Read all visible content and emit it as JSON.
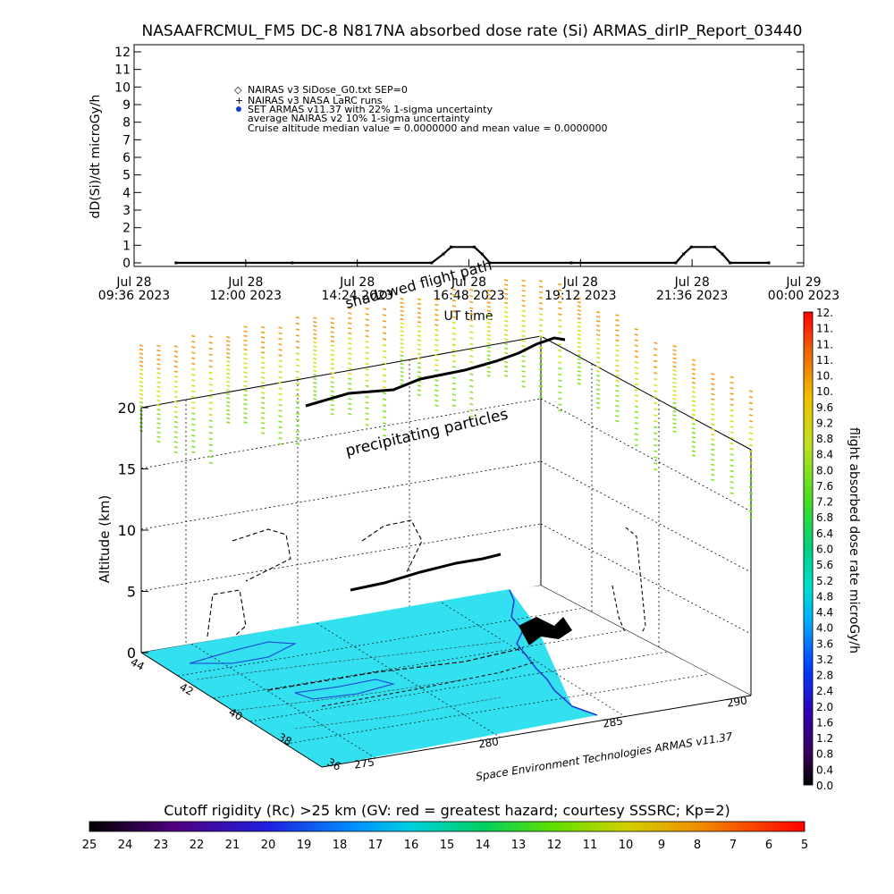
{
  "title": "NASAAFRCMUL_FM5 DC-8   N817NA absorbed dose rate (Si) ARMAS_dirIP_Report_03440",
  "top_chart": {
    "ylabel": "dD(Si)/dt microGy/h",
    "xlabel": "UT time",
    "y_ticks": [
      "0",
      "1",
      "2",
      "3",
      "4",
      "5",
      "6",
      "7",
      "8",
      "9",
      "10",
      "11",
      "12"
    ],
    "x_ticks": [
      {
        "date": "Jul 28",
        "time": "09:36 2023"
      },
      {
        "date": "Jul 28",
        "time": "12:00 2023"
      },
      {
        "date": "Jul 28",
        "time": "14:24 2023"
      },
      {
        "date": "Jul 28",
        "time": "16:48 2023"
      },
      {
        "date": "Jul 28",
        "time": "19:12 2023"
      },
      {
        "date": "Jul 28",
        "time": "21:36 2023"
      },
      {
        "date": "Jul 29",
        "time": "00:00 2023"
      }
    ],
    "legend": [
      "NAIRAS v3 SiDose_G0.txt SEP=0",
      "NAIRAS v3 NASA LaRC runs",
      "SET ARMAS v11.37 with 22% 1-sigma uncertainty",
      "average NAIRAS v2 10% 1-sigma uncertainty",
      "Cruise altitude median value = 0.0000000 and mean value = 0.0000000"
    ]
  },
  "chart_data": {
    "type": "line",
    "title": "NASAAFRCMUL_FM5 DC-8   N817NA absorbed dose rate (Si) ARMAS_dirIP_Report_03440",
    "xlabel": "UT time",
    "ylabel": "dD(Si)/dt microGy/h",
    "xlim": [
      "2023-07-28 09:36",
      "2023-07-29 00:00"
    ],
    "ylim": [
      0,
      12
    ],
    "series": [
      {
        "name": "SET ARMAS v11.37 with 22% 1-sigma uncertainty",
        "x": [
          "2023-07-28 10:30",
          "2023-07-28 13:00",
          "2023-07-28 16:00",
          "2023-07-28 16:15",
          "2023-07-28 16:25",
          "2023-07-28 16:55",
          "2023-07-28 17:05",
          "2023-07-28 17:15",
          "2023-07-28 19:00",
          "2023-07-28 21:15",
          "2023-07-28 21:25",
          "2023-07-28 21:35",
          "2023-07-28 22:05",
          "2023-07-28 22:15",
          "2023-07-28 22:25",
          "2023-07-28 23:15"
        ],
        "values": [
          0,
          0,
          0,
          0.5,
          0.9,
          0.9,
          0.5,
          0,
          0,
          0,
          0.5,
          0.9,
          0.9,
          0.5,
          0,
          0
        ]
      }
    ],
    "annotations": [
      "shadowed flight path",
      "precipitating particles"
    ],
    "globe_axes": {
      "altitude_label": "Altitude (km)",
      "altitude_ticks": [
        "0",
        "5",
        "10",
        "15",
        "20"
      ],
      "latitude_ticks": [
        "44",
        "42",
        "40",
        "38",
        "36"
      ],
      "longitude_ticks": [
        "275",
        "280",
        "285",
        "290"
      ]
    },
    "dose_colorbar": {
      "label": "flight absorbed dose rate microGy/h",
      "ticks": [
        "0.0",
        "0.4",
        "0.8",
        "1.2",
        "1.6",
        "2.0",
        "2.4",
        "2.8",
        "3.2",
        "3.6",
        "4.0",
        "4.4",
        "4.8",
        "5.2",
        "5.6",
        "6.0",
        "6.4",
        "6.8",
        "7.2",
        "7.6",
        "8.0",
        "8.4",
        "8.8",
        "9.2",
        "9.6",
        "10.",
        "10.",
        "11.",
        "11.",
        "11.",
        "12."
      ]
    },
    "rigidity_colorbar": {
      "label": "Cutoff rigidity (Rc) >25 km (GV: red = greatest hazard; courtesy SSSRC; Kp=2)",
      "ticks": [
        "25",
        "24",
        "23",
        "22",
        "21",
        "20",
        "19",
        "18",
        "17",
        "16",
        "15",
        "14",
        "13",
        "12",
        "11",
        "10",
        "9",
        "8",
        "7",
        "6",
        "5"
      ]
    }
  },
  "scene": {
    "shadow_label": "shadowed flight path",
    "precip_label": "precipitating particles",
    "altitude_label": "Altitude (km)",
    "credit": "Space Environment Technologies ARMAS v11.37"
  },
  "colors": {
    "ocean": "#33e0f0",
    "coast": "#1a3ad8",
    "precip_yellow": "#d8e020",
    "precip_orange": "#f0a020",
    "precip_green": "#8ee030"
  }
}
